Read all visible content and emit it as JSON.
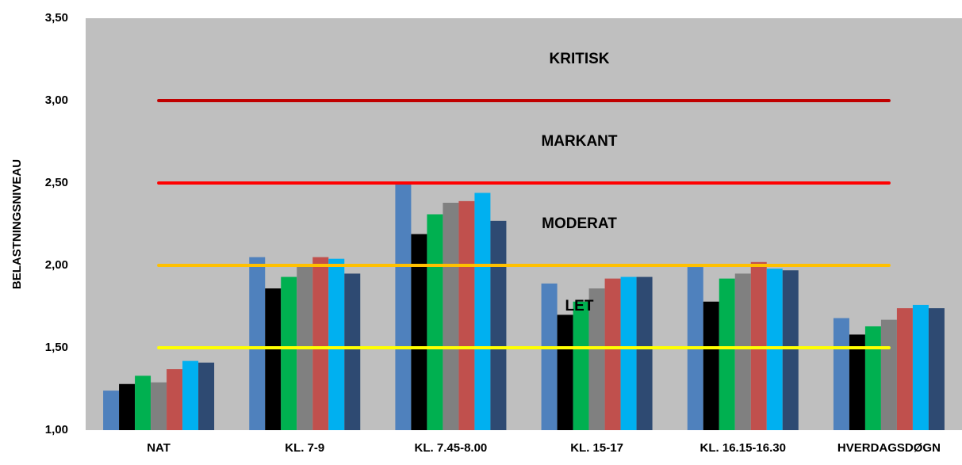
{
  "chart_data": {
    "type": "bar",
    "ylabel": "BELASTNINGSNIVEAU",
    "categories": [
      "NAT",
      "KL. 7-9",
      "KL. 7.45-8.00",
      "KL. 15-17",
      "KL. 16.15-16.30",
      "HVERDAGSDØGN"
    ],
    "series": [
      {
        "color": "#4f81bd",
        "values": [
          1.24,
          2.05,
          2.5,
          1.89,
          1.99,
          1.68
        ]
      },
      {
        "color": "#000000",
        "values": [
          1.28,
          1.86,
          2.19,
          1.7,
          1.78,
          1.58
        ]
      },
      {
        "color": "#00b050",
        "values": [
          1.33,
          1.93,
          2.31,
          1.78,
          1.92,
          1.63
        ]
      },
      {
        "color": "#808080",
        "values": [
          1.29,
          2.0,
          2.38,
          1.86,
          1.95,
          1.67
        ]
      },
      {
        "color": "#c0504d",
        "values": [
          1.37,
          2.05,
          2.39,
          1.92,
          2.02,
          1.74
        ]
      },
      {
        "color": "#00b0f0",
        "values": [
          1.42,
          2.04,
          2.44,
          1.93,
          1.98,
          1.76
        ]
      },
      {
        "color": "#2e4a72",
        "values": [
          1.41,
          1.95,
          2.27,
          1.93,
          1.97,
          1.74
        ]
      }
    ],
    "ylim": [
      1.0,
      3.5
    ],
    "yticks": [
      {
        "value": 1.0,
        "label": "1,00"
      },
      {
        "value": 1.5,
        "label": "1,50"
      },
      {
        "value": 2.0,
        "label": "2,00"
      },
      {
        "value": 2.5,
        "label": "2,50"
      },
      {
        "value": 3.0,
        "label": "3,00"
      },
      {
        "value": 3.5,
        "label": "3,50"
      }
    ],
    "reference_lines": [
      {
        "value": 3.0,
        "color": "#c00000"
      },
      {
        "value": 2.5,
        "color": "#ff0000"
      },
      {
        "value": 2.0,
        "color": "#ffc000"
      },
      {
        "value": 1.5,
        "color": "#ffff00"
      }
    ],
    "annotations": [
      "KRITISK",
      "MARKANT",
      "MODERAT",
      "LET"
    ],
    "background": "#bfbfbf"
  }
}
